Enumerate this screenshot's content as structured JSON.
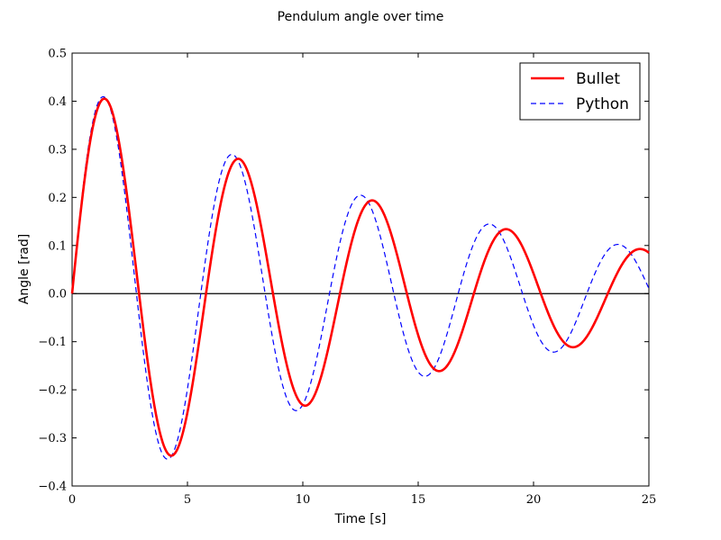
{
  "chart_data": {
    "type": "line",
    "title": "Pendulum angle over time",
    "xlabel": "Time [s]",
    "ylabel": "Angle [rad]",
    "xlim": [
      0,
      25
    ],
    "ylim": [
      -0.4,
      0.5
    ],
    "xticks": [
      0,
      5,
      10,
      15,
      20,
      25
    ],
    "yticks": [
      -0.4,
      -0.3,
      -0.2,
      -0.1,
      0.0,
      0.1,
      0.2,
      0.3,
      0.4,
      0.5
    ],
    "xtick_labels": [
      "0",
      "5",
      "10",
      "15",
      "20",
      "25"
    ],
    "ytick_labels": [
      "−0.4",
      "−0.3",
      "−0.2",
      "−0.1",
      "0.0",
      "0.1",
      "0.2",
      "0.3",
      "0.4",
      "0.5"
    ],
    "grid": false,
    "legend_position": "top-right",
    "zero_line": true,
    "series": [
      {
        "name": "Bullet",
        "color": "#ff0000",
        "style": "solid",
        "model": {
          "amplitude": 0.4436,
          "decay": 0.06355,
          "omega": 1.0825,
          "phase": 0.0
        },
        "extrema": [
          {
            "t": 1.35,
            "angle": 0.403
          },
          {
            "t": 4.25,
            "angle": -0.335
          },
          {
            "t": 7.15,
            "angle": 0.282
          },
          {
            "t": 10.05,
            "angle": -0.235
          },
          {
            "t": 12.95,
            "angle": 0.198
          },
          {
            "t": 15.85,
            "angle": -0.166
          },
          {
            "t": 18.75,
            "angle": 0.139
          },
          {
            "t": 21.65,
            "angle": -0.116
          },
          {
            "t": 24.45,
            "angle": 0.099
          }
        ]
      },
      {
        "name": "Python",
        "color": "#0000ff",
        "style": "dashed",
        "model": {
          "amplitude": 0.4456,
          "decay": 0.06215,
          "omega": 1.1265,
          "phase": 0.0
        },
        "extrema": [
          {
            "t": 1.3,
            "angle": 0.412
          },
          {
            "t": 4.1,
            "angle": -0.346
          },
          {
            "t": 6.95,
            "angle": 0.293
          },
          {
            "t": 9.75,
            "angle": -0.248
          },
          {
            "t": 12.55,
            "angle": 0.209
          },
          {
            "t": 15.35,
            "angle": -0.177
          },
          {
            "t": 18.15,
            "angle": 0.151
          },
          {
            "t": 20.95,
            "angle": -0.127
          },
          {
            "t": 23.85,
            "angle": 0.109
          }
        ]
      }
    ]
  }
}
